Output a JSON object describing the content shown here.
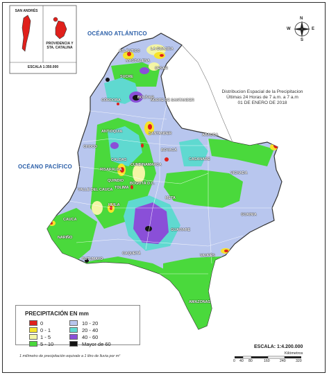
{
  "insets": {
    "san_andres": "SAN ANDRÉS",
    "providencia": "PROVIDENCIA Y STA. CATALINA",
    "scale": "ESCALA 1:350.000"
  },
  "oceans": {
    "atlantic": "OCÉANO ATLÁNTICO",
    "pacific": "OCÉANO PACÍFICO"
  },
  "title": {
    "line1": "Distribucion Espacial de la Precipitacion",
    "line2": "Últimas 24 Horas de 7 a.m. a 7 a.m",
    "line3": "01 DE ENERO DE 2018"
  },
  "compass": {
    "n": "N",
    "s": "S",
    "e": "E",
    "w": "W"
  },
  "departments": [
    {
      "name": "LA GUAJIRA"
    },
    {
      "name": "ATLÁNTICO"
    },
    {
      "name": "MAGDALENA"
    },
    {
      "name": "CESAR"
    },
    {
      "name": "SUCRE"
    },
    {
      "name": "BOLÍVAR"
    },
    {
      "name": "CÓRDOBA"
    },
    {
      "name": "NORTE DE SANTANDER"
    },
    {
      "name": "SANTANDER"
    },
    {
      "name": "ANTIOQUIA"
    },
    {
      "name": "ARAUCA"
    },
    {
      "name": "CHOCO"
    },
    {
      "name": "BOYACÁ"
    },
    {
      "name": "CASANARE"
    },
    {
      "name": "CALDAS"
    },
    {
      "name": "CUNDINAMARCA"
    },
    {
      "name": "VICHADA"
    },
    {
      "name": "RISARALDA"
    },
    {
      "name": "QUINDIO"
    },
    {
      "name": "BOGOTÁ D.C."
    },
    {
      "name": "VALLE DEL CAUCA"
    },
    {
      "name": "TOLIMA"
    },
    {
      "name": "META"
    },
    {
      "name": "HUILA"
    },
    {
      "name": "CAUCA"
    },
    {
      "name": "GUAINIA"
    },
    {
      "name": "GUAVIARE"
    },
    {
      "name": "NARIÑO"
    },
    {
      "name": "CAQUETÁ"
    },
    {
      "name": "VAUPÉS"
    },
    {
      "name": "PUTUMAYO"
    },
    {
      "name": "AMAZONAS"
    }
  ],
  "legend": {
    "title": "PRECIPITACIÓN EN mm",
    "items": [
      {
        "label": "0",
        "color": "#e0201b"
      },
      {
        "label": "0 - 1",
        "color": "#f6e32a"
      },
      {
        "label": "1 - 5",
        "color": "#f3f5a6"
      },
      {
        "label": "5 - 10",
        "color": "#4ad93c"
      },
      {
        "label": "10 - 20",
        "color": "#b8c6ee"
      },
      {
        "label": "20 - 40",
        "color": "#5fd9d0"
      },
      {
        "label": "40 - 60",
        "color": "#8a4fd8"
      },
      {
        "label": "Mayor de 60",
        "color": "#141414"
      }
    ],
    "note": "1 milímetro de precipitación equivale a 1 litro de lluvia por m²"
  },
  "scale": {
    "label": "ESCALA:  1:4.200.000",
    "unit": "Kilómetros",
    "ticks": [
      "0",
      "40",
      "80",
      "160",
      "240",
      "320"
    ]
  },
  "colors": {
    "land_base": "#b8c6ee",
    "green": "#4ad93c",
    "cyan": "#5fd9d0",
    "purple": "#8a4fd8",
    "yellow": "#f6e32a",
    "pale": "#f3f5a6",
    "red": "#e0201b",
    "black": "#141414"
  }
}
